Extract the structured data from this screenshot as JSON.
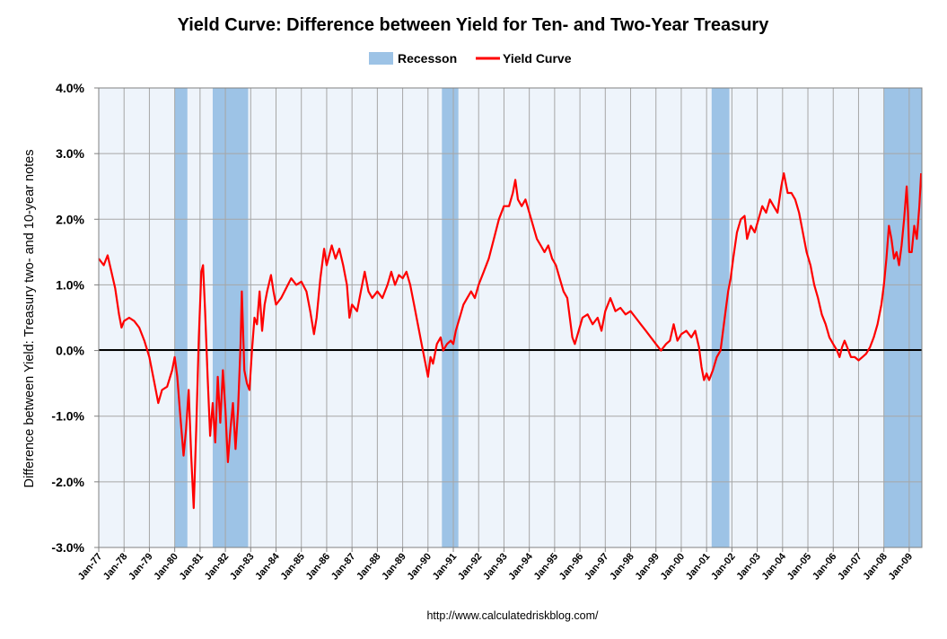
{
  "chart_data": {
    "type": "line",
    "title": "Yield Curve: Difference between Yield for Ten- and Two-Year Treasury",
    "ylabel": "Difference between Yield: Treasury two- and 10-year notes",
    "xlabel": "",
    "source": "http://www.calculatedriskblog.com/",
    "ylim": [
      -3.0,
      4.0
    ],
    "xlim": [
      1977.0,
      2009.5
    ],
    "yticks": [
      {
        "value": 4.0,
        "label": "4.0%"
      },
      {
        "value": 3.0,
        "label": "3.0%"
      },
      {
        "value": 2.0,
        "label": "2.0%"
      },
      {
        "value": 1.0,
        "label": "1.0%"
      },
      {
        "value": 0.0,
        "label": "0.0%"
      },
      {
        "value": -1.0,
        "label": "-1.0%"
      },
      {
        "value": -2.0,
        "label": "-2.0%"
      },
      {
        "value": -3.0,
        "label": "-3.0%"
      }
    ],
    "xticks": [
      "Jan-77",
      "Jan-78",
      "Jan-79",
      "Jan-80",
      "Jan-81",
      "Jan-82",
      "Jan-83",
      "Jan-84",
      "Jan-85",
      "Jan-86",
      "Jan-87",
      "Jan-88",
      "Jan-89",
      "Jan-90",
      "Jan-91",
      "Jan-92",
      "Jan-93",
      "Jan-94",
      "Jan-95",
      "Jan-96",
      "Jan-97",
      "Jan-98",
      "Jan-99",
      "Jan-00",
      "Jan-01",
      "Jan-02",
      "Jan-03",
      "Jan-04",
      "Jan-05",
      "Jan-06",
      "Jan-07",
      "Jan-08",
      "Jan-09"
    ],
    "grid": true,
    "legend_position": "top-center",
    "colors": {
      "recession": "#9dc3e6",
      "line": "#ff0000",
      "zero_line": "#000000",
      "plot_background": "#eef4fb",
      "grid": "#a6a6a6"
    },
    "series": [
      {
        "name": "Yield Curve",
        "points": [
          [
            1977.0,
            1.4
          ],
          [
            1977.2,
            1.3
          ],
          [
            1977.35,
            1.45
          ],
          [
            1977.5,
            1.2
          ],
          [
            1977.65,
            0.95
          ],
          [
            1977.8,
            0.55
          ],
          [
            1977.9,
            0.35
          ],
          [
            1978.0,
            0.45
          ],
          [
            1978.2,
            0.5
          ],
          [
            1978.4,
            0.45
          ],
          [
            1978.6,
            0.35
          ],
          [
            1978.8,
            0.15
          ],
          [
            1979.0,
            -0.1
          ],
          [
            1979.2,
            -0.5
          ],
          [
            1979.35,
            -0.8
          ],
          [
            1979.5,
            -0.6
          ],
          [
            1979.7,
            -0.55
          ],
          [
            1979.9,
            -0.3
          ],
          [
            1980.0,
            -0.1
          ],
          [
            1980.1,
            -0.4
          ],
          [
            1980.2,
            -0.9
          ],
          [
            1980.35,
            -1.6
          ],
          [
            1980.45,
            -1.2
          ],
          [
            1980.55,
            -0.6
          ],
          [
            1980.65,
            -1.6
          ],
          [
            1980.75,
            -2.4
          ],
          [
            1980.85,
            -1.2
          ],
          [
            1980.95,
            0.2
          ],
          [
            1981.05,
            1.2
          ],
          [
            1981.12,
            1.3
          ],
          [
            1981.2,
            0.6
          ],
          [
            1981.3,
            -0.4
          ],
          [
            1981.4,
            -1.3
          ],
          [
            1981.5,
            -0.8
          ],
          [
            1981.6,
            -1.4
          ],
          [
            1981.7,
            -0.4
          ],
          [
            1981.8,
            -1.1
          ],
          [
            1981.9,
            -0.3
          ],
          [
            1982.0,
            -0.9
          ],
          [
            1982.1,
            -1.7
          ],
          [
            1982.2,
            -1.2
          ],
          [
            1982.3,
            -0.8
          ],
          [
            1982.4,
            -1.5
          ],
          [
            1982.5,
            -0.9
          ],
          [
            1982.6,
            0.1
          ],
          [
            1982.65,
            0.9
          ],
          [
            1982.75,
            -0.3
          ],
          [
            1982.85,
            -0.5
          ],
          [
            1982.95,
            -0.6
          ],
          [
            1983.05,
            0.0
          ],
          [
            1983.15,
            0.5
          ],
          [
            1983.25,
            0.4
          ],
          [
            1983.35,
            0.9
          ],
          [
            1983.45,
            0.3
          ],
          [
            1983.55,
            0.7
          ],
          [
            1983.65,
            0.9
          ],
          [
            1983.8,
            1.15
          ],
          [
            1983.9,
            0.9
          ],
          [
            1984.0,
            0.7
          ],
          [
            1984.2,
            0.8
          ],
          [
            1984.4,
            0.95
          ],
          [
            1984.6,
            1.1
          ],
          [
            1984.8,
            1.0
          ],
          [
            1985.0,
            1.05
          ],
          [
            1985.2,
            0.9
          ],
          [
            1985.35,
            0.6
          ],
          [
            1985.5,
            0.25
          ],
          [
            1985.6,
            0.5
          ],
          [
            1985.75,
            1.1
          ],
          [
            1985.9,
            1.55
          ],
          [
            1986.0,
            1.3
          ],
          [
            1986.2,
            1.6
          ],
          [
            1986.35,
            1.4
          ],
          [
            1986.5,
            1.55
          ],
          [
            1986.65,
            1.3
          ],
          [
            1986.8,
            1.0
          ],
          [
            1986.9,
            0.5
          ],
          [
            1987.0,
            0.7
          ],
          [
            1987.2,
            0.6
          ],
          [
            1987.35,
            0.9
          ],
          [
            1987.5,
            1.2
          ],
          [
            1987.65,
            0.9
          ],
          [
            1987.8,
            0.8
          ],
          [
            1988.0,
            0.9
          ],
          [
            1988.2,
            0.8
          ],
          [
            1988.4,
            1.0
          ],
          [
            1988.55,
            1.2
          ],
          [
            1988.7,
            1.0
          ],
          [
            1988.85,
            1.15
          ],
          [
            1989.0,
            1.1
          ],
          [
            1989.15,
            1.2
          ],
          [
            1989.3,
            1.0
          ],
          [
            1989.45,
            0.7
          ],
          [
            1989.6,
            0.4
          ],
          [
            1989.75,
            0.1
          ],
          [
            1989.9,
            -0.2
          ],
          [
            1990.0,
            -0.4
          ],
          [
            1990.1,
            -0.1
          ],
          [
            1990.2,
            -0.2
          ],
          [
            1990.35,
            0.1
          ],
          [
            1990.5,
            0.2
          ],
          [
            1990.6,
            0.0
          ],
          [
            1990.75,
            0.1
          ],
          [
            1990.9,
            0.15
          ],
          [
            1991.0,
            0.1
          ],
          [
            1991.1,
            0.3
          ],
          [
            1991.25,
            0.5
          ],
          [
            1991.4,
            0.7
          ],
          [
            1991.55,
            0.8
          ],
          [
            1991.7,
            0.9
          ],
          [
            1991.85,
            0.8
          ],
          [
            1992.0,
            1.0
          ],
          [
            1992.2,
            1.2
          ],
          [
            1992.4,
            1.4
          ],
          [
            1992.6,
            1.7
          ],
          [
            1992.8,
            2.0
          ],
          [
            1993.0,
            2.2
          ],
          [
            1993.2,
            2.2
          ],
          [
            1993.35,
            2.4
          ],
          [
            1993.45,
            2.6
          ],
          [
            1993.55,
            2.3
          ],
          [
            1993.7,
            2.2
          ],
          [
            1993.85,
            2.3
          ],
          [
            1994.0,
            2.1
          ],
          [
            1994.15,
            1.9
          ],
          [
            1994.3,
            1.7
          ],
          [
            1994.45,
            1.6
          ],
          [
            1994.6,
            1.5
          ],
          [
            1994.75,
            1.6
          ],
          [
            1994.9,
            1.4
          ],
          [
            1995.05,
            1.3
          ],
          [
            1995.2,
            1.1
          ],
          [
            1995.35,
            0.9
          ],
          [
            1995.5,
            0.8
          ],
          [
            1995.6,
            0.5
          ],
          [
            1995.7,
            0.2
          ],
          [
            1995.8,
            0.1
          ],
          [
            1995.95,
            0.3
          ],
          [
            1996.1,
            0.5
          ],
          [
            1996.3,
            0.55
          ],
          [
            1996.5,
            0.4
          ],
          [
            1996.7,
            0.5
          ],
          [
            1996.85,
            0.3
          ],
          [
            1997.0,
            0.6
          ],
          [
            1997.2,
            0.8
          ],
          [
            1997.4,
            0.6
          ],
          [
            1997.6,
            0.65
          ],
          [
            1997.8,
            0.55
          ],
          [
            1998.0,
            0.6
          ],
          [
            1998.2,
            0.5
          ],
          [
            1998.4,
            0.4
          ],
          [
            1998.6,
            0.3
          ],
          [
            1998.8,
            0.2
          ],
          [
            1999.0,
            0.1
          ],
          [
            1999.2,
            0.0
          ],
          [
            1999.4,
            0.1
          ],
          [
            1999.55,
            0.15
          ],
          [
            1999.7,
            0.4
          ],
          [
            1999.85,
            0.15
          ],
          [
            2000.0,
            0.25
          ],
          [
            2000.2,
            0.3
          ],
          [
            2000.4,
            0.2
          ],
          [
            2000.55,
            0.3
          ],
          [
            2000.7,
            0.05
          ],
          [
            2000.8,
            -0.25
          ],
          [
            2000.9,
            -0.45
          ],
          [
            2001.0,
            -0.35
          ],
          [
            2001.1,
            -0.45
          ],
          [
            2001.25,
            -0.3
          ],
          [
            2001.4,
            -0.1
          ],
          [
            2001.55,
            0.0
          ],
          [
            2001.65,
            0.3
          ],
          [
            2001.75,
            0.6
          ],
          [
            2001.85,
            0.9
          ],
          [
            2001.95,
            1.1
          ],
          [
            2002.05,
            1.4
          ],
          [
            2002.2,
            1.8
          ],
          [
            2002.35,
            2.0
          ],
          [
            2002.5,
            2.05
          ],
          [
            2002.6,
            1.7
          ],
          [
            2002.75,
            1.9
          ],
          [
            2002.9,
            1.8
          ],
          [
            2003.05,
            2.0
          ],
          [
            2003.2,
            2.2
          ],
          [
            2003.35,
            2.1
          ],
          [
            2003.5,
            2.3
          ],
          [
            2003.65,
            2.2
          ],
          [
            2003.8,
            2.1
          ],
          [
            2003.95,
            2.5
          ],
          [
            2004.05,
            2.7
          ],
          [
            2004.2,
            2.4
          ],
          [
            2004.35,
            2.4
          ],
          [
            2004.5,
            2.3
          ],
          [
            2004.65,
            2.1
          ],
          [
            2004.8,
            1.8
          ],
          [
            2004.95,
            1.5
          ],
          [
            2005.1,
            1.3
          ],
          [
            2005.25,
            1.0
          ],
          [
            2005.4,
            0.8
          ],
          [
            2005.55,
            0.55
          ],
          [
            2005.7,
            0.4
          ],
          [
            2005.85,
            0.2
          ],
          [
            2006.0,
            0.1
          ],
          [
            2006.15,
            0.0
          ],
          [
            2006.25,
            -0.1
          ],
          [
            2006.35,
            0.05
          ],
          [
            2006.45,
            0.15
          ],
          [
            2006.55,
            0.05
          ],
          [
            2006.7,
            -0.1
          ],
          [
            2006.85,
            -0.1
          ],
          [
            2007.0,
            -0.15
          ],
          [
            2007.15,
            -0.1
          ],
          [
            2007.3,
            -0.05
          ],
          [
            2007.45,
            0.05
          ],
          [
            2007.6,
            0.2
          ],
          [
            2007.75,
            0.4
          ],
          [
            2007.9,
            0.7
          ],
          [
            2008.0,
            1.0
          ],
          [
            2008.1,
            1.4
          ],
          [
            2008.2,
            1.9
          ],
          [
            2008.3,
            1.7
          ],
          [
            2008.4,
            1.4
          ],
          [
            2008.5,
            1.5
          ],
          [
            2008.6,
            1.3
          ],
          [
            2008.7,
            1.6
          ],
          [
            2008.8,
            2.0
          ],
          [
            2008.9,
            2.5
          ],
          [
            2008.95,
            2.1
          ],
          [
            2009.0,
            1.5
          ],
          [
            2009.1,
            1.5
          ],
          [
            2009.2,
            1.9
          ],
          [
            2009.3,
            1.7
          ],
          [
            2009.4,
            2.2
          ],
          [
            2009.47,
            2.7
          ]
        ]
      }
    ],
    "recessions": [
      {
        "name": "Recesson",
        "start": 1980.0,
        "end": 1980.5
      },
      {
        "name": "Recesson",
        "start": 1981.5,
        "end": 1982.9
      },
      {
        "name": "Recesson",
        "start": 1990.55,
        "end": 1991.2
      },
      {
        "name": "Recesson",
        "start": 2001.2,
        "end": 2001.9
      },
      {
        "name": "Recesson",
        "start": 2008.0,
        "end": 2009.5
      }
    ],
    "legend": [
      {
        "label": "Recesson",
        "kind": "bar"
      },
      {
        "label": "Yield Curve",
        "kind": "line"
      }
    ]
  }
}
